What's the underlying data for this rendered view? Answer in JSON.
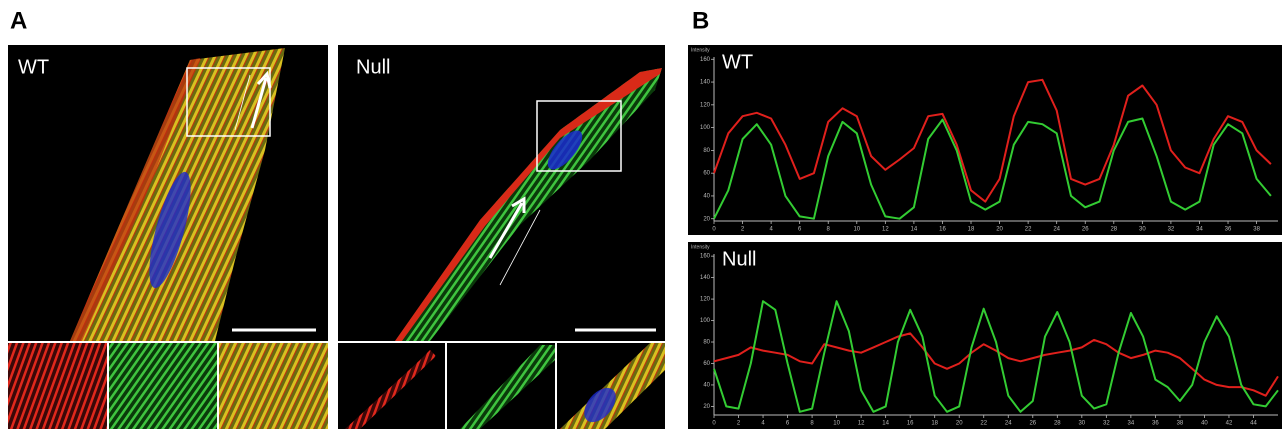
{
  "panels": {
    "a": {
      "label": "A",
      "images": [
        {
          "label": "WT"
        },
        {
          "label": "Null"
        }
      ]
    },
    "b": {
      "label": "B"
    }
  },
  "chart_data": [
    {
      "type": "line",
      "title": "WT",
      "y_label": "Intensity",
      "x": [
        0,
        1,
        2,
        3,
        4,
        5,
        6,
        7,
        8,
        9,
        10,
        11,
        12,
        13,
        14,
        15,
        16,
        17,
        18,
        19,
        20,
        21,
        22,
        23,
        24,
        25,
        26,
        27,
        28,
        29,
        30,
        31,
        32,
        33,
        34,
        35,
        36,
        37,
        38,
        39
      ],
      "series": [
        {
          "color": "#e0201c",
          "values": [
            60,
            95,
            110,
            113,
            108,
            85,
            55,
            60,
            105,
            117,
            110,
            75,
            63,
            72,
            82,
            110,
            112,
            85,
            45,
            35,
            55,
            110,
            140,
            142,
            115,
            55,
            50,
            55,
            85,
            128,
            137,
            120,
            80,
            65,
            60,
            90,
            110,
            105,
            80,
            68
          ]
        },
        {
          "color": "#33cc33",
          "values": [
            20,
            45,
            90,
            103,
            85,
            40,
            22,
            20,
            75,
            105,
            95,
            50,
            22,
            20,
            30,
            90,
            107,
            80,
            35,
            28,
            35,
            85,
            105,
            103,
            95,
            40,
            30,
            35,
            80,
            105,
            108,
            75,
            35,
            28,
            35,
            85,
            103,
            95,
            55,
            40
          ]
        }
      ],
      "xlim": [
        0,
        39.5
      ],
      "ylim": [
        18,
        162
      ],
      "xticks": [
        0,
        2,
        4,
        6,
        8,
        10,
        12,
        14,
        16,
        18,
        20,
        22,
        24,
        26,
        28,
        30,
        32,
        34,
        36,
        38
      ],
      "yticks": [
        20,
        40,
        60,
        80,
        100,
        120,
        140,
        160
      ]
    },
    {
      "type": "line",
      "title": "Null",
      "y_label": "Intensity",
      "x": [
        0,
        1,
        2,
        3,
        4,
        5,
        6,
        7,
        8,
        9,
        10,
        11,
        12,
        13,
        14,
        15,
        16,
        17,
        18,
        19,
        20,
        21,
        22,
        23,
        24,
        25,
        26,
        27,
        28,
        29,
        30,
        31,
        32,
        33,
        34,
        35,
        36,
        37,
        38,
        39,
        40,
        41,
        42,
        43,
        44,
        45,
        46
      ],
      "series": [
        {
          "color": "#e0201c",
          "values": [
            62,
            65,
            68,
            75,
            72,
            70,
            68,
            62,
            60,
            78,
            75,
            72,
            70,
            75,
            80,
            85,
            88,
            75,
            60,
            55,
            60,
            70,
            78,
            72,
            65,
            62,
            65,
            68,
            70,
            72,
            75,
            82,
            78,
            70,
            65,
            68,
            72,
            70,
            65,
            55,
            45,
            40,
            38,
            38,
            35,
            30,
            48
          ]
        },
        {
          "color": "#33cc33",
          "values": [
            55,
            20,
            18,
            60,
            118,
            110,
            60,
            15,
            18,
            70,
            118,
            90,
            35,
            15,
            20,
            80,
            110,
            85,
            30,
            15,
            20,
            75,
            111,
            80,
            30,
            15,
            25,
            85,
            108,
            80,
            30,
            18,
            22,
            70,
            107,
            85,
            45,
            38,
            25,
            40,
            80,
            104,
            85,
            40,
            22,
            20,
            35
          ]
        }
      ],
      "xlim": [
        0,
        46
      ],
      "ylim": [
        12,
        162
      ],
      "xticks": [
        0,
        2,
        4,
        6,
        8,
        10,
        12,
        14,
        16,
        18,
        20,
        22,
        24,
        26,
        28,
        30,
        32,
        34,
        36,
        38,
        40,
        42,
        44
      ],
      "yticks": [
        20,
        40,
        60,
        80,
        100,
        120,
        140,
        160
      ]
    }
  ]
}
